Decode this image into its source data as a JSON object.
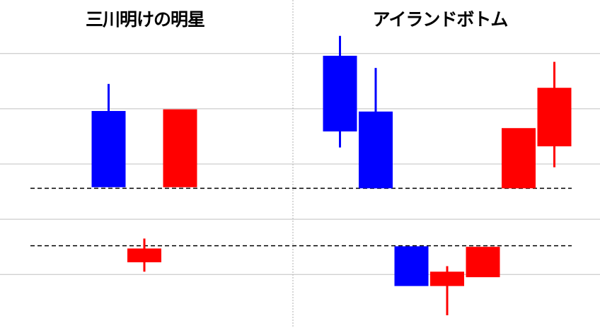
{
  "chart_data": {
    "type": "candlestick",
    "ylim": [
      0.3,
      59.7
    ],
    "grid": {
      "horizontal": true,
      "values": [
        10,
        20,
        30,
        40,
        50
      ]
    },
    "colors": {
      "bullish": "#ff0000",
      "bearish": "#0000ff",
      "grid": "#c0c0c0",
      "divider": "#b0b0b0",
      "reference": "#000000"
    },
    "reference_lines": [
      25.6,
      15.2
    ],
    "panels": [
      {
        "title": "三川明けの明星",
        "candles": [
          {
            "open": 39.6,
            "high": 44.5,
            "low": 25.8,
            "close": 25.8
          },
          {
            "open": 12.2,
            "high": 16.5,
            "low": 10.5,
            "close": 14.7
          },
          {
            "open": 25.8,
            "high": 39.9,
            "low": 25.8,
            "close": 39.9
          }
        ]
      },
      {
        "title": "アイランドボトム",
        "candles": [
          {
            "open": 49.6,
            "high": 53.2,
            "low": 33.0,
            "close": 35.9
          },
          {
            "open": 39.5,
            "high": 47.4,
            "low": 25.6,
            "close": 25.6
          },
          {
            "open": 15.1,
            "high": 15.1,
            "low": 7.9,
            "close": 7.9
          },
          {
            "open": 7.9,
            "high": 11.5,
            "low": 2.6,
            "close": 10.5
          },
          {
            "open": 9.5,
            "high": 15.0,
            "low": 9.5,
            "close": 15.0
          },
          {
            "open": 25.6,
            "high": 36.5,
            "low": 25.6,
            "close": 36.5
          },
          {
            "open": 33.2,
            "high": 48.5,
            "low": 29.4,
            "close": 43.8
          }
        ]
      }
    ]
  }
}
